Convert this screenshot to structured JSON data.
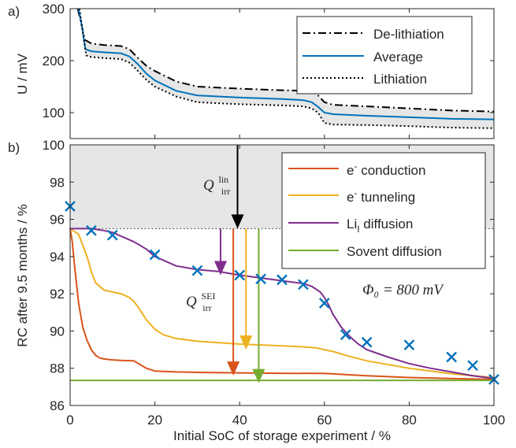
{
  "chart_data": [
    {
      "type": "line",
      "panel_label": "a)",
      "ylabel": "U / mV",
      "xlim": [
        0,
        100
      ],
      "ylim": [
        50,
        300
      ],
      "yticks": [
        "100",
        "200",
        "300"
      ],
      "grid": false,
      "legend_position": "top-right",
      "shaded_band": "between De-lithiation and Lithiation",
      "series": [
        {
          "name": "De-lithiation",
          "style": "dash-dot",
          "color": "#000000",
          "x": [
            1.8,
            2.5,
            3.5,
            5,
            8,
            12,
            14,
            16,
            18,
            20,
            25,
            30,
            40,
            50,
            55,
            57,
            58.5,
            60,
            62,
            70,
            80,
            90,
            100
          ],
          "y": [
            300,
            275,
            240,
            233,
            230,
            228,
            222,
            205,
            190,
            180,
            160,
            150,
            146,
            143,
            142,
            140,
            133,
            120,
            115,
            112,
            108,
            104,
            102
          ]
        },
        {
          "name": "Average",
          "style": "solid",
          "color": "#0072BD",
          "x": [
            2,
            2.8,
            3.6,
            5,
            8,
            12,
            14,
            16,
            18,
            20,
            25,
            30,
            40,
            50,
            55,
            57,
            58.5,
            60,
            62,
            70,
            80,
            90,
            100
          ],
          "y": [
            300,
            265,
            222,
            218,
            216,
            214,
            208,
            193,
            175,
            162,
            142,
            133,
            129,
            126,
            124,
            120,
            111,
            100,
            97,
            94,
            91,
            88,
            87
          ]
        },
        {
          "name": "Lithiation",
          "style": "dotted",
          "color": "#000000",
          "x": [
            2.2,
            3,
            3.8,
            5,
            8,
            12,
            14,
            16,
            18,
            20,
            25,
            30,
            40,
            50,
            55,
            57,
            58.5,
            60,
            62,
            70,
            80,
            90,
            100
          ],
          "y": [
            300,
            255,
            210,
            207,
            205,
            203,
            196,
            180,
            163,
            150,
            131,
            120,
            116,
            114,
            112,
            108,
            100,
            80,
            77,
            76,
            74,
            71,
            70
          ]
        }
      ]
    },
    {
      "type": "line",
      "panel_label": "b)",
      "xlabel": "Initial SoC of storage experiment / %",
      "ylabel": "RC after 9.5 months / %",
      "xlim": [
        0,
        100
      ],
      "ylim": [
        86,
        100
      ],
      "xticks": [
        "0",
        "20",
        "40",
        "60",
        "80",
        "100"
      ],
      "yticks": [
        "86",
        "88",
        "90",
        "92",
        "94",
        "96",
        "98",
        "100"
      ],
      "grid": false,
      "legend_position": "top-right",
      "shaded_region": {
        "y_from": 95.5,
        "y_to": 100
      },
      "reference_line": {
        "y": 95.5,
        "style": "dotted"
      },
      "series": [
        {
          "name": "e⁻ conduction",
          "color": "#D95319",
          "x": [
            0,
            0.5,
            1,
            2,
            3,
            4,
            5,
            6,
            7,
            8,
            10,
            12,
            15,
            18,
            20,
            25,
            30,
            40,
            50,
            60,
            70,
            80,
            90,
            100
          ],
          "y": [
            95.5,
            94.8,
            93.6,
            91.5,
            90.2,
            89.5,
            89.0,
            88.7,
            88.55,
            88.5,
            88.45,
            88.42,
            88.4,
            88.0,
            87.85,
            87.8,
            87.78,
            87.75,
            87.73,
            87.72,
            87.6,
            87.5,
            87.45,
            87.4
          ]
        },
        {
          "name": "e⁻ tunneling",
          "color": "#EDB120",
          "x": [
            0,
            2,
            4,
            5,
            6,
            8,
            10,
            12,
            14,
            15,
            16,
            18,
            20,
            22,
            25,
            30,
            40,
            50,
            55,
            58,
            60,
            62,
            65,
            70,
            80,
            90,
            100
          ],
          "y": [
            95.5,
            95.2,
            94.0,
            93.2,
            92.6,
            92.2,
            92.1,
            92.0,
            91.8,
            91.6,
            91.3,
            90.6,
            90.1,
            89.8,
            89.6,
            89.45,
            89.3,
            89.2,
            89.15,
            89.1,
            89.0,
            88.9,
            88.7,
            88.4,
            88.0,
            87.7,
            87.5
          ]
        },
        {
          "name": "Li_I diffusion",
          "color": "#7E2F8E",
          "x": [
            0,
            5,
            8,
            10,
            12,
            15,
            18,
            20,
            22,
            25,
            30,
            35,
            40,
            45,
            50,
            55,
            57,
            59,
            60,
            61,
            62,
            64,
            66,
            68,
            70,
            75,
            80,
            85,
            90,
            95,
            100
          ],
          "y": [
            95.5,
            95.5,
            95.4,
            95.3,
            95.1,
            94.8,
            94.4,
            94.0,
            93.8,
            93.5,
            93.3,
            93.2,
            93.0,
            92.85,
            92.7,
            92.55,
            92.4,
            92.1,
            91.8,
            91.4,
            90.9,
            90.2,
            89.7,
            89.3,
            89.0,
            88.6,
            88.25,
            88.0,
            87.8,
            87.6,
            87.45
          ]
        },
        {
          "name": "Sovent diffusion",
          "color": "#77AC30",
          "x": [
            0,
            100
          ],
          "y": [
            87.35,
            87.35
          ]
        }
      ],
      "measured_points": {
        "marker": "x",
        "color": "#0072BD",
        "x": [
          0,
          5,
          10,
          20,
          30,
          40,
          45,
          50,
          55,
          60,
          65,
          70,
          80,
          90,
          95,
          100
        ],
        "y": [
          96.7,
          95.4,
          95.15,
          94.1,
          93.25,
          93.0,
          92.8,
          92.75,
          92.5,
          91.5,
          89.8,
          89.4,
          89.25,
          88.6,
          88.15,
          87.4
        ]
      },
      "annotations": {
        "q_lin_label": "Q",
        "q_lin_sup": "lin",
        "q_lin_sub": "irr",
        "q_sei_label": "Q",
        "q_sei_sup": "SEI",
        "q_sei_sub": "irr",
        "phi_label": "Φ₀ = 800 mV",
        "arrows": [
          {
            "x": 39.5,
            "from": 100,
            "to": 95.5,
            "color": "#000000"
          },
          {
            "x": 35.5,
            "from": 95.5,
            "to": 93.0,
            "color": "#7E2F8E"
          },
          {
            "x": 38.5,
            "from": 95.5,
            "to": 87.6,
            "color": "#D95319"
          },
          {
            "x": 41.5,
            "from": 95.5,
            "to": 89.0,
            "color": "#EDB120"
          },
          {
            "x": 44.5,
            "from": 95.5,
            "to": 87.2,
            "color": "#77AC30"
          }
        ]
      }
    }
  ],
  "legend_a": {
    "item1": "De-lithiation",
    "item2": "Average",
    "item3": "Lithiation"
  },
  "legend_b": {
    "item1_base": "e",
    "item1_sup": "-",
    "item1_rest": " conduction",
    "item2_base": "e",
    "item2_sup": "-",
    "item2_rest": " tunneling",
    "item3_base": "Li",
    "item3_sub": "I",
    "item3_rest": " diffusion",
    "item4": "Sovent diffusion"
  },
  "colors": {
    "shade": "#e6e6e6",
    "axis": "#262626"
  }
}
